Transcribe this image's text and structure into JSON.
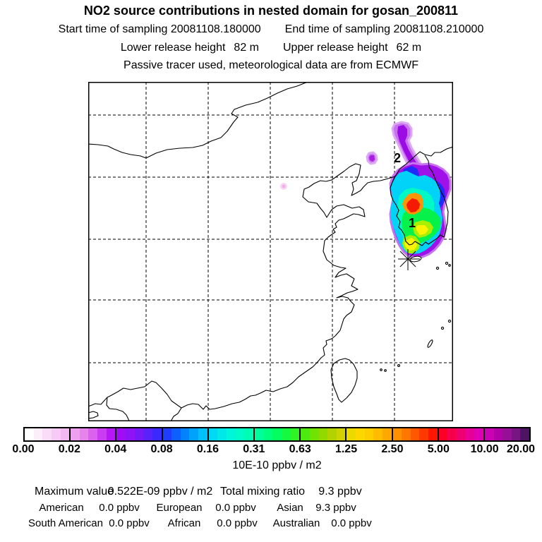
{
  "header": {
    "title": "NO2 source contributions in nested domain for gosan_200811",
    "start_time_label": "Start time of sampling 20081108.180000",
    "end_time_label": "End time of sampling 20081108.210000",
    "lower_release_label": "Lower release height",
    "lower_release_value": "82 m",
    "upper_release_label": "Upper release height",
    "upper_release_value": "62 m",
    "tracer_note": "Passive tracer used, meteorological data are from ECMWF"
  },
  "map": {
    "plume_label_1": "1",
    "plume_label_2": "2",
    "plume_colors": {
      "violet_fringe": "#c873ee",
      "purple": "#a010e8",
      "blue": "#1f2bf8",
      "cyan": "#00d2f8",
      "teal": "#00f9c4",
      "green": "#07f14b",
      "yellow_green": "#a8ef00",
      "yellow": "#fdf403",
      "orange": "#ff9405",
      "red": "#f51a02"
    }
  },
  "colorbar": {
    "unit_label": "10E-10 ppbv / m2",
    "tick_labels": [
      "0.00",
      "0.02",
      "0.04",
      "0.08",
      "0.16",
      "0.31",
      "0.63",
      "1.25",
      "2.50",
      "5.00",
      "10.00",
      "20.00"
    ],
    "segments": [
      [
        "#ffffff",
        "#fdeefb",
        "#fadcf8",
        "#f6caf4",
        "#f2b8f1"
      ],
      [
        "#eda0ee",
        "#e684ec",
        "#da62ee",
        "#c93cf2",
        "#b517f6"
      ],
      [
        "#a00df4",
        "#8d13f6",
        "#7519f8",
        "#5b21fb",
        "#3b28fe"
      ],
      [
        "#1f3dff",
        "#0d60ff",
        "#0482fe",
        "#00a2fc",
        "#00c1f9"
      ],
      [
        "#00d9f3",
        "#00e9e8",
        "#00f6da",
        "#00fdc9",
        "#00ffb4"
      ],
      [
        "#00ff9b",
        "#00ff7e",
        "#04fd5f",
        "#15f940",
        "#2ef324"
      ],
      [
        "#4deb10",
        "#6ee304",
        "#90da00",
        "#b2d300",
        "#d2d200"
      ],
      [
        "#ecd900",
        "#fcd800",
        "#ffcc00",
        "#ffbb00",
        "#ffa800"
      ],
      [
        "#ff9100",
        "#ff7600",
        "#ff5900",
        "#ff3900",
        "#ff1600"
      ],
      [
        "#fc0026",
        "#f6004d",
        "#ef0072",
        "#e70095",
        "#de00b2"
      ],
      [
        "#cc00b4",
        "#b400a8",
        "#960f97",
        "#751682",
        "#4c1463"
      ]
    ]
  },
  "stats": {
    "maximum_label": "Maximum value",
    "maximum_value": "0.522E-09 ppbv / m2",
    "total_label": "Total mixing ratio",
    "total_value": "9.3 ppbv",
    "rows": [
      [
        {
          "label": "American",
          "value": "0.0 ppbv"
        },
        {
          "label": "European",
          "value": "0.0 ppbv"
        },
        {
          "label": "Asian",
          "value": "9.3 ppbv"
        }
      ],
      [
        {
          "label": "South American",
          "value": "0.0 ppbv"
        },
        {
          "label": "African",
          "value": "0.0 ppbv"
        },
        {
          "label": "Australian",
          "value": "0.0 ppbv"
        }
      ]
    ]
  },
  "chart_data": {
    "type": "heatmap",
    "title": "NO2 source contributions in nested domain for gosan_200811",
    "subtitle_lines": [
      "Start time of sampling 20081108.180000    End time of sampling 20081108.210000",
      "Lower release height 82 m    Upper release height 62 m",
      "Passive tracer used, meteorological data are from ECMWF"
    ],
    "colorbar_levels": [
      0.0,
      0.02,
      0.04,
      0.08,
      0.16,
      0.31,
      0.63,
      1.25,
      2.5,
      5.0,
      10.0,
      20.0
    ],
    "colorbar_unit": "10E-10 ppbv / m2",
    "maximum_value": "0.522E-09 ppbv / m2",
    "total_mixing_ratio_ppbv": 9.3,
    "source_contributions_ppbv": {
      "American": 0.0,
      "European": 0.0,
      "Asian": 9.3,
      "South American": 0.0,
      "African": 0.0,
      "Australian": 0.0
    },
    "annotations": [
      {
        "label": "1",
        "location": "plume core over South Korea"
      },
      {
        "label": "2",
        "location": "plume tail north of Korea"
      },
      {
        "marker": "star",
        "location": "receptor site gosan (Jeju island)"
      }
    ],
    "legend_position": "bottom",
    "grid": true
  }
}
